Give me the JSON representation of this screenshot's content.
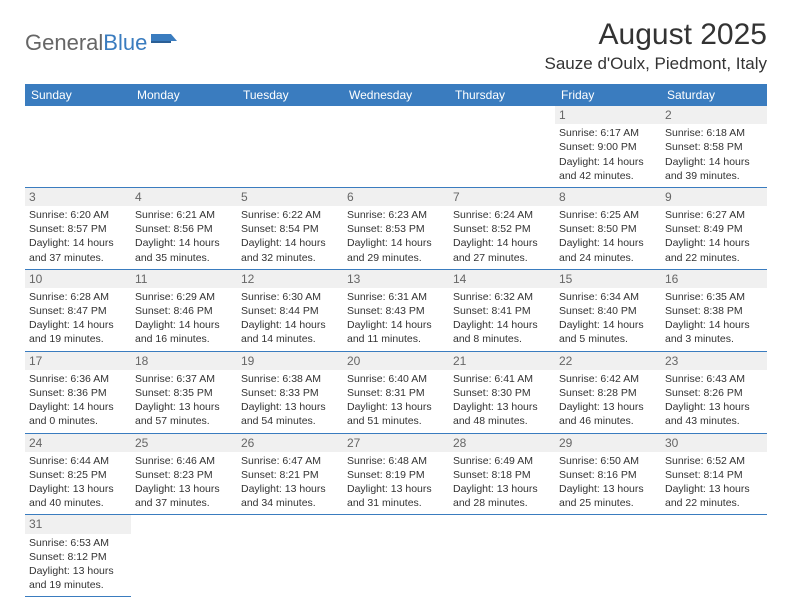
{
  "logo": {
    "general": "General",
    "blue": "Blue"
  },
  "title": "August 2025",
  "location": "Sauze d'Oulx, Piedmont, Italy",
  "colors": {
    "header_bg": "#3a7cbf",
    "header_text": "#ffffff",
    "row_divider": "#3a7cbf",
    "daynum_bg": "#f0f0f0",
    "text": "#333333"
  },
  "daysOfWeek": [
    "Sunday",
    "Monday",
    "Tuesday",
    "Wednesday",
    "Thursday",
    "Friday",
    "Saturday"
  ],
  "weeks": [
    [
      null,
      null,
      null,
      null,
      null,
      {
        "n": "1",
        "sr": "Sunrise: 6:17 AM",
        "ss": "Sunset: 9:00 PM",
        "dl": "Daylight: 14 hours and 42 minutes."
      },
      {
        "n": "2",
        "sr": "Sunrise: 6:18 AM",
        "ss": "Sunset: 8:58 PM",
        "dl": "Daylight: 14 hours and 39 minutes."
      }
    ],
    [
      {
        "n": "3",
        "sr": "Sunrise: 6:20 AM",
        "ss": "Sunset: 8:57 PM",
        "dl": "Daylight: 14 hours and 37 minutes."
      },
      {
        "n": "4",
        "sr": "Sunrise: 6:21 AM",
        "ss": "Sunset: 8:56 PM",
        "dl": "Daylight: 14 hours and 35 minutes."
      },
      {
        "n": "5",
        "sr": "Sunrise: 6:22 AM",
        "ss": "Sunset: 8:54 PM",
        "dl": "Daylight: 14 hours and 32 minutes."
      },
      {
        "n": "6",
        "sr": "Sunrise: 6:23 AM",
        "ss": "Sunset: 8:53 PM",
        "dl": "Daylight: 14 hours and 29 minutes."
      },
      {
        "n": "7",
        "sr": "Sunrise: 6:24 AM",
        "ss": "Sunset: 8:52 PM",
        "dl": "Daylight: 14 hours and 27 minutes."
      },
      {
        "n": "8",
        "sr": "Sunrise: 6:25 AM",
        "ss": "Sunset: 8:50 PM",
        "dl": "Daylight: 14 hours and 24 minutes."
      },
      {
        "n": "9",
        "sr": "Sunrise: 6:27 AM",
        "ss": "Sunset: 8:49 PM",
        "dl": "Daylight: 14 hours and 22 minutes."
      }
    ],
    [
      {
        "n": "10",
        "sr": "Sunrise: 6:28 AM",
        "ss": "Sunset: 8:47 PM",
        "dl": "Daylight: 14 hours and 19 minutes."
      },
      {
        "n": "11",
        "sr": "Sunrise: 6:29 AM",
        "ss": "Sunset: 8:46 PM",
        "dl": "Daylight: 14 hours and 16 minutes."
      },
      {
        "n": "12",
        "sr": "Sunrise: 6:30 AM",
        "ss": "Sunset: 8:44 PM",
        "dl": "Daylight: 14 hours and 14 minutes."
      },
      {
        "n": "13",
        "sr": "Sunrise: 6:31 AM",
        "ss": "Sunset: 8:43 PM",
        "dl": "Daylight: 14 hours and 11 minutes."
      },
      {
        "n": "14",
        "sr": "Sunrise: 6:32 AM",
        "ss": "Sunset: 8:41 PM",
        "dl": "Daylight: 14 hours and 8 minutes."
      },
      {
        "n": "15",
        "sr": "Sunrise: 6:34 AM",
        "ss": "Sunset: 8:40 PM",
        "dl": "Daylight: 14 hours and 5 minutes."
      },
      {
        "n": "16",
        "sr": "Sunrise: 6:35 AM",
        "ss": "Sunset: 8:38 PM",
        "dl": "Daylight: 14 hours and 3 minutes."
      }
    ],
    [
      {
        "n": "17",
        "sr": "Sunrise: 6:36 AM",
        "ss": "Sunset: 8:36 PM",
        "dl": "Daylight: 14 hours and 0 minutes."
      },
      {
        "n": "18",
        "sr": "Sunrise: 6:37 AM",
        "ss": "Sunset: 8:35 PM",
        "dl": "Daylight: 13 hours and 57 minutes."
      },
      {
        "n": "19",
        "sr": "Sunrise: 6:38 AM",
        "ss": "Sunset: 8:33 PM",
        "dl": "Daylight: 13 hours and 54 minutes."
      },
      {
        "n": "20",
        "sr": "Sunrise: 6:40 AM",
        "ss": "Sunset: 8:31 PM",
        "dl": "Daylight: 13 hours and 51 minutes."
      },
      {
        "n": "21",
        "sr": "Sunrise: 6:41 AM",
        "ss": "Sunset: 8:30 PM",
        "dl": "Daylight: 13 hours and 48 minutes."
      },
      {
        "n": "22",
        "sr": "Sunrise: 6:42 AM",
        "ss": "Sunset: 8:28 PM",
        "dl": "Daylight: 13 hours and 46 minutes."
      },
      {
        "n": "23",
        "sr": "Sunrise: 6:43 AM",
        "ss": "Sunset: 8:26 PM",
        "dl": "Daylight: 13 hours and 43 minutes."
      }
    ],
    [
      {
        "n": "24",
        "sr": "Sunrise: 6:44 AM",
        "ss": "Sunset: 8:25 PM",
        "dl": "Daylight: 13 hours and 40 minutes."
      },
      {
        "n": "25",
        "sr": "Sunrise: 6:46 AM",
        "ss": "Sunset: 8:23 PM",
        "dl": "Daylight: 13 hours and 37 minutes."
      },
      {
        "n": "26",
        "sr": "Sunrise: 6:47 AM",
        "ss": "Sunset: 8:21 PM",
        "dl": "Daylight: 13 hours and 34 minutes."
      },
      {
        "n": "27",
        "sr": "Sunrise: 6:48 AM",
        "ss": "Sunset: 8:19 PM",
        "dl": "Daylight: 13 hours and 31 minutes."
      },
      {
        "n": "28",
        "sr": "Sunrise: 6:49 AM",
        "ss": "Sunset: 8:18 PM",
        "dl": "Daylight: 13 hours and 28 minutes."
      },
      {
        "n": "29",
        "sr": "Sunrise: 6:50 AM",
        "ss": "Sunset: 8:16 PM",
        "dl": "Daylight: 13 hours and 25 minutes."
      },
      {
        "n": "30",
        "sr": "Sunrise: 6:52 AM",
        "ss": "Sunset: 8:14 PM",
        "dl": "Daylight: 13 hours and 22 minutes."
      }
    ],
    [
      {
        "n": "31",
        "sr": "Sunrise: 6:53 AM",
        "ss": "Sunset: 8:12 PM",
        "dl": "Daylight: 13 hours and 19 minutes."
      },
      null,
      null,
      null,
      null,
      null,
      null
    ]
  ]
}
